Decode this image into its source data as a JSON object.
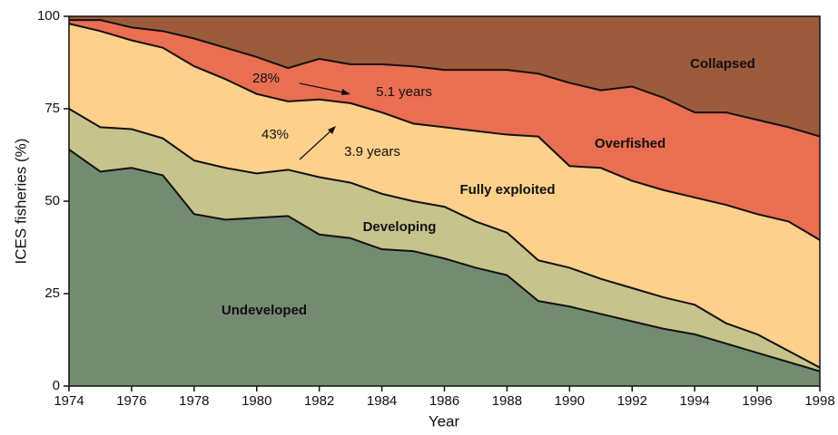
{
  "chart_data": {
    "type": "stacked_area",
    "x_label": "Year",
    "y_label": "ICES fisheries (%)",
    "x": [
      1974,
      1975,
      1976,
      1977,
      1978,
      1979,
      1980,
      1981,
      1982,
      1983,
      1984,
      1985,
      1986,
      1987,
      1988,
      1989,
      1990,
      1991,
      1992,
      1993,
      1994,
      1995,
      1996,
      1997,
      1998
    ],
    "xlim": [
      1974,
      1998
    ],
    "xticks": [
      1974,
      1976,
      1978,
      1980,
      1982,
      1984,
      1986,
      1988,
      1990,
      1992,
      1994,
      1996,
      1998
    ],
    "ylim": [
      0,
      100
    ],
    "yticks": [
      0,
      25,
      50,
      75,
      100
    ],
    "series": [
      {
        "name": "Undeveloped",
        "color": "#738b70",
        "values": [
          64,
          58,
          59,
          57,
          46.5,
          45,
          45.5,
          46,
          41,
          40,
          37,
          36.5,
          34.5,
          32,
          30,
          23,
          21.5,
          19.5,
          17.5,
          15.5,
          14,
          11.5,
          9,
          6.5,
          4
        ]
      },
      {
        "name": "Developing",
        "color": "#c6c38c",
        "values": [
          11,
          12,
          10.5,
          10,
          14.5,
          14,
          12,
          12.5,
          15.5,
          15,
          15,
          13.5,
          14,
          12.5,
          11.5,
          11,
          10.5,
          9.5,
          9,
          8.5,
          8,
          5.5,
          5,
          3,
          1
        ]
      },
      {
        "name": "Fully exploited",
        "color": "#fdd08b",
        "values": [
          23,
          26,
          24,
          24.5,
          25.5,
          24,
          21.5,
          18.5,
          21,
          21.5,
          22,
          21,
          21.5,
          24.5,
          26.5,
          33.5,
          27.5,
          30,
          29,
          29,
          29,
          32,
          32.5,
          35,
          34.5
        ]
      },
      {
        "name": "Overfished",
        "color": "#ea6e51",
        "values": [
          1,
          3,
          3.5,
          4.5,
          7.5,
          8.5,
          10,
          9,
          11,
          10.5,
          13,
          15.5,
          15.5,
          16.5,
          17.5,
          17,
          22.5,
          21,
          25.5,
          25,
          23,
          25,
          25.5,
          25.5,
          28
        ]
      },
      {
        "name": "Collapsed",
        "color": "#9c5b3c",
        "values": [
          1,
          1,
          3,
          4,
          6,
          8.5,
          11,
          14,
          11.5,
          13,
          13,
          13.5,
          14.5,
          14.5,
          14.5,
          15.5,
          18,
          20,
          19,
          22,
          26,
          26,
          28,
          30,
          32.5
        ]
      }
    ],
    "annotations": [
      "28%",
      "5.1 years",
      "43%",
      "3.9 years"
    ]
  }
}
